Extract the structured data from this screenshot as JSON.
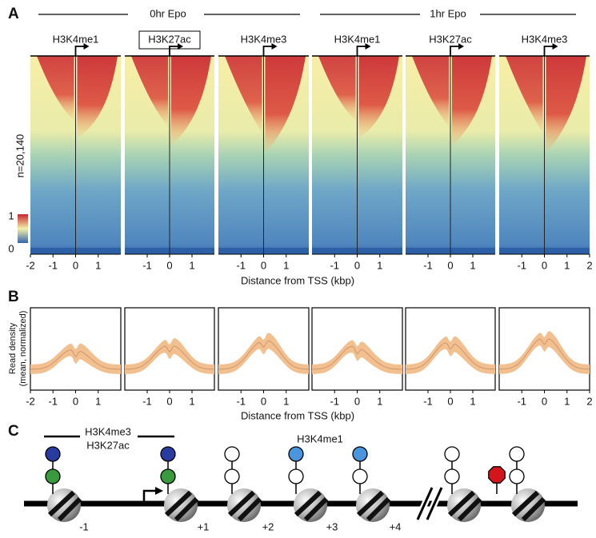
{
  "panel_labels": [
    "A",
    "B",
    "C"
  ],
  "conditions": [
    "0hr Epo",
    "1hr Epo"
  ],
  "heatmap_row_label": "n=20,140",
  "colorbar_ticks": [
    1,
    0
  ],
  "heatmap_xlabel": "Distance from TSS (kbp)",
  "profile_ylabel": [
    "Read density",
    "(mean, normalized)"
  ],
  "profile_xlabel": "Distance from TSS (kbp)",
  "chart_data": [
    {
      "type": "heatmap",
      "title": "H3K4me1",
      "xlim": [
        -2,
        2
      ],
      "xticks": [
        -2,
        -1,
        0,
        1
      ]
    },
    {
      "type": "heatmap",
      "title": "H3K27ac",
      "xlim": [
        -2,
        2
      ],
      "xticks": [
        -1,
        0,
        1
      ]
    },
    {
      "type": "heatmap",
      "title": "H3K4me3",
      "xlim": [
        -2,
        2
      ],
      "xticks": [
        -1,
        0,
        1
      ]
    },
    {
      "type": "heatmap",
      "title": "H3K4me1",
      "xlim": [
        -2,
        2
      ],
      "xticks": [
        -1,
        0,
        1
      ]
    },
    {
      "type": "heatmap",
      "title": "H3K27ac",
      "xlim": [
        -2,
        2
      ],
      "xticks": [
        -1,
        0,
        1
      ]
    },
    {
      "type": "heatmap",
      "title": "H3K4me3",
      "xlim": [
        -2,
        2
      ],
      "xticks": [
        -1,
        0,
        1,
        2
      ]
    },
    {
      "type": "profile",
      "xlim": [
        -2,
        2
      ],
      "xticks": [
        -2,
        -1,
        0,
        1
      ]
    },
    {
      "type": "profile",
      "xlim": [
        -2,
        2
      ],
      "xticks": [
        -1,
        0,
        1
      ]
    },
    {
      "type": "profile",
      "xlim": [
        -2,
        2
      ],
      "xticks": [
        -1,
        0,
        1
      ]
    },
    {
      "type": "profile",
      "xlim": [
        -2,
        2
      ],
      "xticks": [
        -1,
        0,
        1
      ]
    },
    {
      "type": "profile",
      "xlim": [
        -2,
        2
      ],
      "xticks": [
        -1,
        0,
        1
      ]
    },
    {
      "type": "profile",
      "xlim": [
        -2,
        2
      ],
      "xticks": [
        -1,
        0,
        1,
        2
      ]
    }
  ],
  "diagram": {
    "top_labels": [
      "H3K4me3",
      "H3K27ac"
    ],
    "mid_label": "H3K4me1",
    "nucleosome_labels": [
      "-1",
      "+1",
      "+2",
      "+3",
      "+4"
    ]
  }
}
